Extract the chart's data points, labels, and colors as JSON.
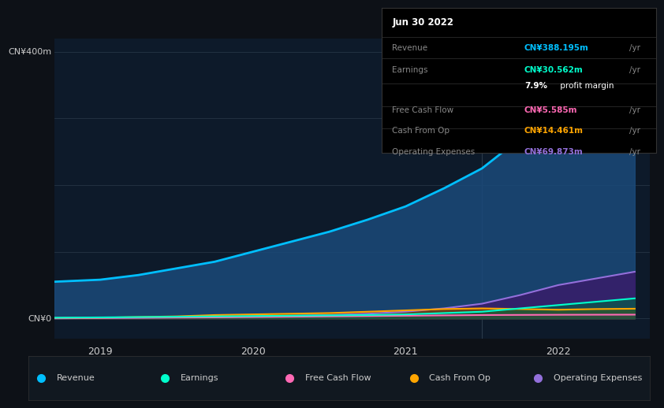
{
  "bg_color": "#0d1117",
  "plot_bg_color": "#0d1a2a",
  "title_box_bg": "#000000",
  "title_box_date": "Jun 30 2022",
  "table_rows": [
    {
      "label": "Revenue",
      "value": "CN¥388.195m /yr",
      "value_color": "#00bfff"
    },
    {
      "label": "Earnings",
      "value": "CN¥30.562m /yr",
      "value_color": "#00ffcc"
    },
    {
      "label": "",
      "value": "7.9% profit margin",
      "value_color": "#ffffff"
    },
    {
      "label": "Free Cash Flow",
      "value": "CN¥5.585m /yr",
      "value_color": "#ff69b4"
    },
    {
      "label": "Cash From Op",
      "value": "CN¥14.461m /yr",
      "value_color": "#ffa500"
    },
    {
      "label": "Operating Expenses",
      "value": "CN¥69.873m /yr",
      "value_color": "#9370db"
    }
  ],
  "ylabel_top": "CN¥400m",
  "ylabel_zero": "CN¥0",
  "x_ticks": [
    2019,
    2020,
    2021,
    2022
  ],
  "x_range": [
    2018.7,
    2022.6
  ],
  "y_range": [
    -30,
    420
  ],
  "grid_color": "#2a3a4a",
  "vertical_line_x": 2021.5,
  "series": {
    "revenue": {
      "color": "#00bfff",
      "fill_color": "#1a4a7a",
      "label": "Revenue",
      "x": [
        2018.7,
        2019.0,
        2019.25,
        2019.5,
        2019.75,
        2020.0,
        2020.25,
        2020.5,
        2020.75,
        2021.0,
        2021.25,
        2021.5,
        2021.75,
        2022.0,
        2022.25,
        2022.5
      ],
      "y": [
        55,
        58,
        65,
        75,
        85,
        100,
        115,
        130,
        148,
        168,
        195,
        225,
        270,
        310,
        360,
        395
      ]
    },
    "earnings": {
      "color": "#00ffcc",
      "fill_color": "#006644",
      "label": "Earnings",
      "x": [
        2018.7,
        2019.0,
        2019.25,
        2019.5,
        2019.75,
        2020.0,
        2020.25,
        2020.5,
        2020.75,
        2021.0,
        2021.25,
        2021.5,
        2021.75,
        2022.0,
        2022.25,
        2022.5
      ],
      "y": [
        1,
        1.5,
        2,
        2.5,
        3,
        3.5,
        4,
        4.5,
        5,
        6,
        8,
        10,
        15,
        20,
        25,
        30
      ]
    },
    "free_cash_flow": {
      "color": "#ff69b4",
      "fill_color": "#7a1a3a",
      "label": "Free Cash Flow",
      "x": [
        2018.7,
        2019.0,
        2019.25,
        2019.5,
        2019.75,
        2020.0,
        2020.25,
        2020.5,
        2020.75,
        2021.0,
        2021.25,
        2021.5,
        2021.75,
        2022.0,
        2022.25,
        2022.5
      ],
      "y": [
        0.5,
        0.8,
        1.0,
        1.2,
        1.5,
        2.0,
        2.5,
        3.0,
        3.5,
        4.0,
        4.5,
        5.0,
        5.2,
        5.4,
        5.5,
        5.6
      ]
    },
    "cash_from_op": {
      "color": "#ffa500",
      "fill_color": "#7a4a00",
      "label": "Cash From Op",
      "x": [
        2018.7,
        2019.0,
        2019.25,
        2019.5,
        2019.75,
        2020.0,
        2020.25,
        2020.5,
        2020.75,
        2021.0,
        2021.25,
        2021.5,
        2021.75,
        2022.0,
        2022.25,
        2022.5
      ],
      "y": [
        0.5,
        1,
        2,
        3,
        5,
        6,
        7,
        8,
        10,
        12,
        14,
        15,
        14,
        13,
        14,
        14.5
      ]
    },
    "operating_expenses": {
      "color": "#9370db",
      "fill_color": "#3a1a6a",
      "label": "Operating Expenses",
      "x": [
        2018.7,
        2019.0,
        2019.25,
        2019.5,
        2019.75,
        2020.0,
        2020.25,
        2020.5,
        2020.75,
        2021.0,
        2021.25,
        2021.5,
        2021.75,
        2022.0,
        2022.25,
        2022.5
      ],
      "y": [
        0,
        0.5,
        1,
        1.5,
        2,
        3,
        4,
        5,
        7,
        10,
        15,
        22,
        35,
        50,
        60,
        70
      ]
    }
  },
  "legend_items": [
    {
      "label": "Revenue",
      "color": "#00bfff"
    },
    {
      "label": "Earnings",
      "color": "#00ffcc"
    },
    {
      "label": "Free Cash Flow",
      "color": "#ff69b4"
    },
    {
      "label": "Cash From Op",
      "color": "#ffa500"
    },
    {
      "label": "Operating Expenses",
      "color": "#9370db"
    }
  ]
}
